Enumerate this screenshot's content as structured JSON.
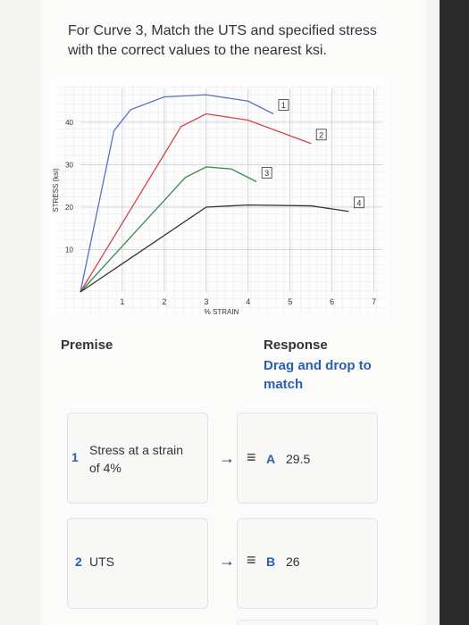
{
  "question": "For Curve 3, Match the UTS and specified stress with the correct values to the nearest ksi.",
  "figure": {
    "type": "line",
    "x_label": "% STRAIN",
    "y_label": "STRESS (ksi)",
    "xlim": [
      0,
      7.2
    ],
    "ylim": [
      0,
      48
    ],
    "xticks": [
      1,
      2,
      3,
      4,
      5,
      6,
      7
    ],
    "yticks": [
      10,
      20,
      30,
      40
    ],
    "grid": true,
    "series": [
      {
        "name": "1",
        "color": "#5a6fc0",
        "x": [
          0,
          0.8,
          1.2,
          2,
          3,
          4,
          4.6
        ],
        "values": [
          0,
          38,
          43,
          46,
          46.5,
          45,
          42
        ]
      },
      {
        "name": "2",
        "color": "#d9414c",
        "x": [
          0,
          2.4,
          3,
          4,
          5.5
        ],
        "values": [
          0,
          39,
          42,
          40.5,
          35
        ]
      },
      {
        "name": "3",
        "color": "#3a8a4a",
        "x": [
          0,
          2.5,
          3,
          3.6,
          4.2
        ],
        "values": [
          0,
          27,
          29.5,
          29,
          26
        ]
      },
      {
        "name": "4",
        "color": "#333333",
        "x": [
          0,
          3,
          4,
          5.5,
          6.4
        ],
        "values": [
          0,
          20,
          20.5,
          20.3,
          19
        ]
      }
    ]
  },
  "premise": {
    "heading": "Premise"
  },
  "response": {
    "heading": "Response",
    "instruction": "Drag and drop to match"
  },
  "pairs": [
    {
      "number": "1",
      "premise": "Stress at a strain of 4%",
      "letter": "A",
      "value": 29.5
    },
    {
      "number": "2",
      "premise": "UTS",
      "letter": "B",
      "value": 26
    }
  ]
}
